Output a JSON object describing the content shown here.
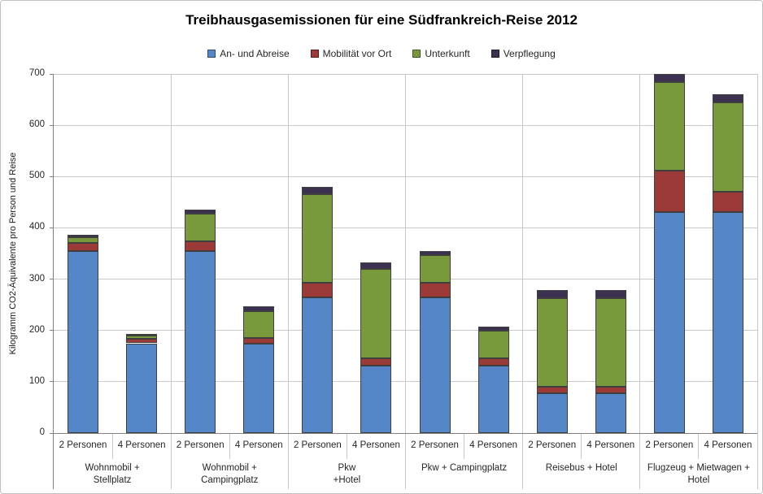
{
  "chart_data": {
    "type": "bar",
    "variant": "stacked",
    "title": "Treibhausgasemissionen für eine Südfrankreich-Reise 2012",
    "y_axis_title": "Kilogramm CO2-Äquivalente pro Person und Reise",
    "y_axis": {
      "min": 0,
      "max": 700,
      "step": 100,
      "tick_labels": [
        "0",
        "100",
        "200",
        "300",
        "400",
        "500",
        "600",
        "700"
      ]
    },
    "legend_position": "top",
    "grid": true,
    "series": [
      {
        "name": "An- und Abreise",
        "color": "#5587C8"
      },
      {
        "name": "Mobilität vor Ort",
        "color": "#9C3A37"
      },
      {
        "name": "Unterkunft",
        "color": "#78993C"
      },
      {
        "name": "Verpflegung",
        "color": "#3D3152"
      }
    ],
    "groups": [
      {
        "label_lines": [
          "Wohnmobil +",
          "Stellplatz"
        ],
        "bars": [
          {
            "category": "2 Personen",
            "values": [
              355,
              16,
              10,
              5
            ]
          },
          {
            "category": "4 Personen",
            "values": [
              175,
              9,
              6,
              4
            ]
          }
        ]
      },
      {
        "label_lines": [
          "Wohnmobil +",
          "Campingplatz"
        ],
        "bars": [
          {
            "category": "2 Personen",
            "values": [
              355,
              18,
              54,
              8
            ]
          },
          {
            "category": "4 Personen",
            "values": [
              174,
              12,
              52,
              9
            ]
          }
        ]
      },
      {
        "label_lines": [
          "Pkw",
          "+Hotel"
        ],
        "bars": [
          {
            "category": "2 Personen",
            "values": [
              265,
              28,
              173,
              14
            ]
          },
          {
            "category": "4 Personen",
            "values": [
              132,
              13,
              175,
              13
            ]
          }
        ]
      },
      {
        "label_lines": [
          "Pkw + Campingplatz"
        ],
        "bars": [
          {
            "category": "2 Personen",
            "values": [
              265,
              28,
              54,
              8
            ]
          },
          {
            "category": "4 Personen",
            "values": [
              132,
              13,
              54,
              9
            ]
          }
        ]
      },
      {
        "label_lines": [
          "Reisebus + Hotel"
        ],
        "bars": [
          {
            "category": "2 Personen",
            "values": [
              77,
              13,
              173,
              16
            ]
          },
          {
            "category": "4 Personen",
            "values": [
              77,
              13,
              173,
              16
            ]
          }
        ]
      },
      {
        "label_lines": [
          "Flugzeug + Mietwagen +",
          "Hotel"
        ],
        "bars": [
          {
            "category": "2 Personen",
            "values": [
              430,
              82,
              172,
              16
            ]
          },
          {
            "category": "4 Personen",
            "values": [
              430,
              41,
              174,
              15
            ]
          }
        ]
      }
    ],
    "colors": {
      "grid": "#c9c9c9",
      "axis": "#7f7f7f",
      "bar_border": "#3f3f3f",
      "text": "#262626",
      "title": "#000000"
    }
  }
}
